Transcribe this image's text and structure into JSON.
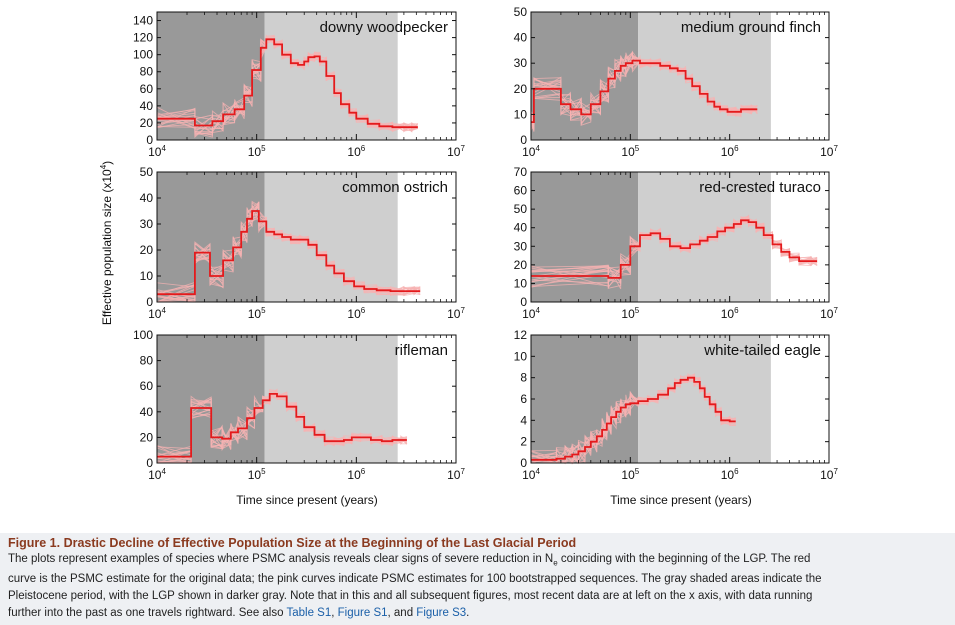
{
  "figure": {
    "ylabel": "Effective population size (x10",
    "ylabel_sup": "4",
    "ylabel_end": ")",
    "xlabel_left": "Time since present (years)",
    "xlabel_right": "Time since present (years)"
  },
  "colors": {
    "lgp": "#999999",
    "pleistocene": "#cfcfcf",
    "estimate": "#e41a1c",
    "bootstrap": "#f7b3b3"
  },
  "chart_data": [
    {
      "type": "line",
      "title": "downy woodpecker",
      "xscale": "log",
      "xlim": [
        10000,
        10000000
      ],
      "ylim": [
        0,
        150
      ],
      "yticks": [
        0,
        20,
        40,
        60,
        80,
        100,
        120,
        140
      ],
      "xtick_labels": [
        "10",
        "10",
        "10",
        "10"
      ],
      "xtick_exponents": [
        "4",
        "5",
        "6",
        "7"
      ],
      "lgp_range": [
        10000,
        120000
      ],
      "pleistocene_range": [
        120000,
        2600000
      ],
      "series": [
        {
          "x": [
            10000,
            24000,
            36000,
            46000,
            60000,
            75000,
            90000,
            110000,
            125000,
            150000,
            180000,
            220000,
            260000,
            300000,
            330000,
            380000,
            430000,
            500000,
            600000,
            700000,
            850000,
            1000000,
            1300000,
            1700000,
            2300000,
            3000000,
            3600000
          ],
          "y": [
            25,
            17,
            22,
            30,
            36,
            52,
            82,
            108,
            118,
            112,
            100,
            90,
            88,
            92,
            97,
            98,
            92,
            75,
            55,
            42,
            32,
            25,
            19,
            16,
            15,
            15,
            15
          ]
        }
      ]
    },
    {
      "type": "line",
      "title": "medium ground finch",
      "xscale": "log",
      "xlim": [
        10000,
        10000000
      ],
      "ylim": [
        0,
        50
      ],
      "yticks": [
        0,
        10,
        20,
        30,
        40,
        50
      ],
      "xtick_labels": [
        "10",
        "10",
        "10",
        "10"
      ],
      "xtick_exponents": [
        "4",
        "5",
        "6",
        "7"
      ],
      "lgp_range": [
        10000,
        120000
      ],
      "pleistocene_range": [
        120000,
        2600000
      ],
      "series": [
        {
          "x": [
            10000,
            10700,
            20000,
            25000,
            32000,
            40000,
            50000,
            60000,
            70000,
            80000,
            90000,
            105000,
            125000,
            160000,
            200000,
            250000,
            300000,
            360000,
            420000,
            500000,
            600000,
            700000,
            800000,
            950000,
            1150000,
            1300000,
            1650000
          ],
          "y": [
            7,
            20,
            14,
            12,
            10,
            14,
            19,
            24,
            27,
            29,
            30,
            31,
            30,
            30,
            29,
            28,
            27,
            24,
            21,
            18,
            15,
            13,
            12,
            11,
            11,
            12,
            12
          ]
        }
      ]
    },
    {
      "type": "line",
      "title": "common ostrich",
      "xscale": "log",
      "xlim": [
        10000,
        10000000
      ],
      "ylim": [
        0,
        50
      ],
      "yticks": [
        0,
        10,
        20,
        30,
        40,
        50
      ],
      "xtick_labels": [
        "10",
        "10",
        "10",
        "10"
      ],
      "xtick_exponents": [
        "4",
        "5",
        "6",
        "7"
      ],
      "lgp_range": [
        10000,
        120000
      ],
      "pleistocene_range": [
        120000,
        2600000
      ],
      "series": [
        {
          "x": [
            10000,
            24000,
            34000,
            46000,
            58000,
            70000,
            80000,
            90000,
            105000,
            125000,
            150000,
            180000,
            220000,
            270000,
            330000,
            400000,
            500000,
            600000,
            750000,
            950000,
            1200000,
            1600000,
            2200000,
            3000000,
            3800000
          ],
          "y": [
            3,
            19,
            10,
            16,
            21,
            27,
            32,
            35,
            31,
            27,
            26,
            25,
            24,
            24,
            22,
            18,
            14,
            11,
            8,
            6,
            5,
            4.5,
            4.2,
            4.2,
            4.2
          ]
        }
      ]
    },
    {
      "type": "line",
      "title": "red-crested turaco",
      "xscale": "log",
      "xlim": [
        10000,
        10000000
      ],
      "ylim": [
        0,
        70
      ],
      "yticks": [
        0,
        10,
        20,
        30,
        40,
        50,
        60,
        70
      ],
      "xtick_labels": [
        "10",
        "10",
        "10",
        "10"
      ],
      "xtick_exponents": [
        "4",
        "5",
        "6",
        "7"
      ],
      "lgp_range": [
        10000,
        120000
      ],
      "pleistocene_range": [
        120000,
        2600000
      ],
      "series": [
        {
          "x": [
            10000,
            60000,
            80000,
            100000,
            125000,
            160000,
            200000,
            250000,
            320000,
            400000,
            500000,
            600000,
            750000,
            900000,
            1100000,
            1300000,
            1550000,
            1850000,
            2200000,
            2700000,
            3300000,
            4000000,
            5000000,
            6600000
          ],
          "y": [
            14,
            13,
            20,
            30,
            36,
            37,
            34,
            30,
            29,
            31,
            33,
            35,
            38,
            40,
            42,
            44,
            43,
            40,
            36,
            31,
            27,
            24,
            22,
            22
          ]
        }
      ]
    },
    {
      "type": "line",
      "title": "rifleman",
      "xscale": "log",
      "xlim": [
        10000,
        10000000
      ],
      "ylim": [
        0,
        100
      ],
      "yticks": [
        0,
        20,
        40,
        60,
        80,
        100
      ],
      "xtick_labels": [
        "10",
        "10",
        "10",
        "10"
      ],
      "xtick_exponents": [
        "4",
        "5",
        "6",
        "7"
      ],
      "lgp_range": [
        10000,
        120000
      ],
      "pleistocene_range": [
        120000,
        2600000
      ],
      "series": [
        {
          "x": [
            10000,
            22000,
            35000,
            45000,
            55000,
            65000,
            80000,
            95000,
            115000,
            135000,
            160000,
            200000,
            250000,
            300000,
            380000,
            480000,
            600000,
            750000,
            900000,
            1100000,
            1400000,
            1800000,
            2300000,
            2800000
          ],
          "y": [
            5,
            43,
            20,
            19,
            24,
            27,
            35,
            43,
            49,
            54,
            52,
            44,
            36,
            28,
            22,
            17,
            17,
            18,
            20,
            20,
            18,
            17,
            18,
            18
          ]
        }
      ]
    },
    {
      "type": "line",
      "title": "white-tailed eagle",
      "xscale": "log",
      "xlim": [
        10000,
        10000000
      ],
      "ylim": [
        0,
        12
      ],
      "yticks": [
        0,
        2,
        4,
        6,
        8,
        10,
        12
      ],
      "xtick_labels": [
        "10",
        "10",
        "10",
        "10"
      ],
      "xtick_exponents": [
        "4",
        "5",
        "6",
        "7"
      ],
      "lgp_range": [
        10000,
        120000
      ],
      "pleistocene_range": [
        120000,
        2600000
      ],
      "series": [
        {
          "x": [
            10000,
            18000,
            22000,
            26000,
            30000,
            35000,
            40000,
            46000,
            52000,
            58000,
            64000,
            72000,
            80000,
            90000,
            100000,
            120000,
            150000,
            190000,
            240000,
            280000,
            320000,
            380000,
            440000,
            500000,
            560000,
            630000,
            720000,
            820000,
            1000000
          ],
          "y": [
            0.3,
            0.4,
            0.6,
            0.8,
            1.1,
            1.5,
            2.0,
            2.5,
            3.1,
            3.7,
            4.3,
            4.8,
            5.2,
            5.5,
            5.6,
            5.8,
            6.0,
            6.4,
            7.0,
            7.5,
            7.8,
            8.0,
            7.6,
            7.0,
            6.2,
            5.5,
            4.8,
            4.0,
            3.9
          ]
        }
      ]
    }
  ],
  "caption": {
    "title": "Figure 1.  Drastic Decline of Effective Population Size at the Beginning of the Last Glacial Period",
    "line1_a": "The plots represent examples of species where PSMC analysis reveals clear signs of severe reduction in N",
    "line1_sub": "e",
    "line1_b": " coinciding with the beginning of the LGP. The red",
    "line2": "curve is the PSMC estimate for the original data; the pink curves indicate PSMC estimates for 100 bootstrapped sequences. The gray shaded areas indicate the",
    "line3": "Pleistocene period, with the LGP shown in darker gray. Note that in this and all subsequent figures, most recent data are at left on the x axis, with data running",
    "line4_a": "further into the past as one travels rightward. See also ",
    "link1": "Table S1",
    "sep1": ", ",
    "link2": "Figure S1",
    "sep2": ", and ",
    "link3": "Figure S3",
    "line4_end": "."
  }
}
